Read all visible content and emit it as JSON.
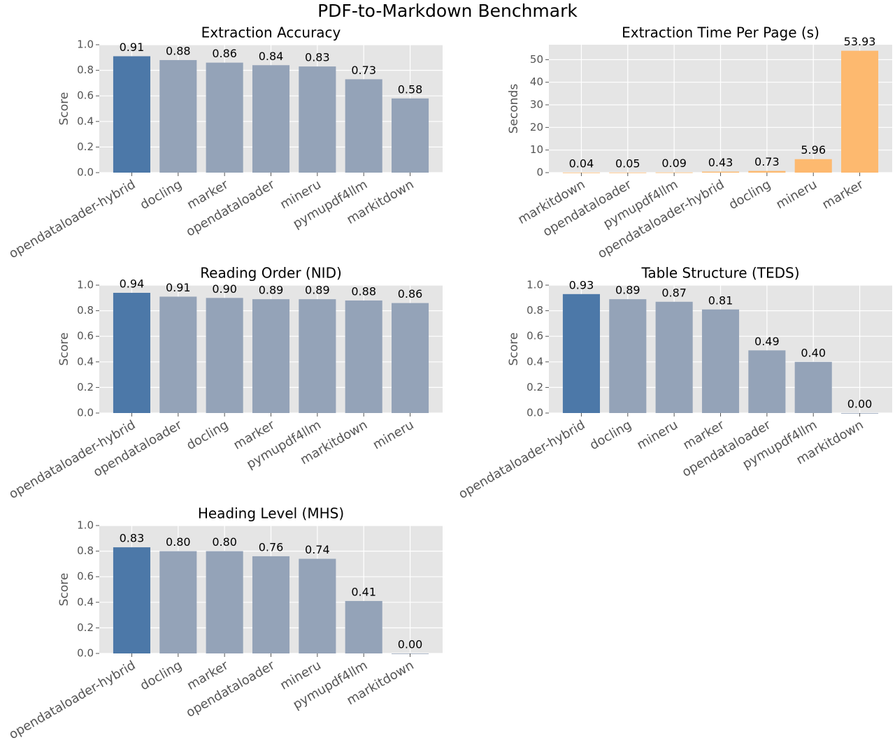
{
  "title": "PDF-to-Markdown Benchmark",
  "chart_data": [
    {
      "type": "bar",
      "title": "Extraction Accuracy",
      "ylabel": "Score",
      "categories": [
        "opendataloader-hybrid",
        "docling",
        "marker",
        "opendataloader",
        "mineru",
        "pymupdf4llm",
        "markitdown"
      ],
      "values": [
        0.91,
        0.88,
        0.86,
        0.84,
        0.83,
        0.73,
        0.58
      ],
      "colors": [
        "#4c78a8",
        "#94a3b8",
        "#94a3b8",
        "#94a3b8",
        "#94a3b8",
        "#94a3b8",
        "#94a3b8"
      ],
      "ylim": [
        0,
        1.0
      ],
      "yticks": [
        {
          "value": 0,
          "label": "0.0"
        },
        {
          "value": 0.2,
          "label": "0.2"
        },
        {
          "value": 0.4,
          "label": "0.4"
        },
        {
          "value": 0.6,
          "label": "0.6"
        },
        {
          "value": 0.8,
          "label": "0.8"
        },
        {
          "value": 1,
          "label": "1.0"
        }
      ],
      "grid": true
    },
    {
      "type": "bar",
      "title": "Extraction Time Per Page (s)",
      "ylabel": "Seconds",
      "categories": [
        "markitdown",
        "opendataloader",
        "pymupdf4llm",
        "opendataloader-hybrid",
        "docling",
        "mineru",
        "marker"
      ],
      "values": [
        0.04,
        0.05,
        0.09,
        0.43,
        0.73,
        5.96,
        53.93
      ],
      "colors": [
        "#fdb96f",
        "#fdb96f",
        "#fdb96f",
        "#fdb96f",
        "#fdb96f",
        "#fdb96f",
        "#fdb96f"
      ],
      "ylim": [
        0,
        56.6
      ],
      "yticks": [
        0,
        10,
        20,
        30,
        40,
        50
      ],
      "grid": true
    },
    {
      "type": "bar",
      "title": "Reading Order (NID)",
      "ylabel": "Score",
      "categories": [
        "opendataloader-hybrid",
        "opendataloader",
        "docling",
        "marker",
        "pymupdf4llm",
        "markitdown",
        "mineru"
      ],
      "values": [
        0.94,
        0.91,
        0.9,
        0.89,
        0.89,
        0.88,
        0.86
      ],
      "value_labels": [
        "0.94",
        "0.91",
        "0.90",
        "0.89",
        "0.89",
        "0.88",
        "0.86"
      ],
      "colors": [
        "#4c78a8",
        "#94a3b8",
        "#94a3b8",
        "#94a3b8",
        "#94a3b8",
        "#94a3b8",
        "#94a3b8"
      ],
      "ylim": [
        0,
        1.0
      ],
      "yticks": [
        {
          "value": 0,
          "label": "0.0"
        },
        {
          "value": 0.2,
          "label": "0.2"
        },
        {
          "value": 0.4,
          "label": "0.4"
        },
        {
          "value": 0.6,
          "label": "0.6"
        },
        {
          "value": 0.8,
          "label": "0.8"
        },
        {
          "value": 1,
          "label": "1.0"
        }
      ],
      "grid": true
    },
    {
      "type": "bar",
      "title": "Table Structure (TEDS)",
      "ylabel": "Score",
      "categories": [
        "opendataloader-hybrid",
        "docling",
        "mineru",
        "marker",
        "opendataloader",
        "pymupdf4llm",
        "markitdown"
      ],
      "values": [
        0.93,
        0.89,
        0.87,
        0.81,
        0.49,
        0.4,
        0
      ],
      "value_labels": [
        "0.93",
        "0.89",
        "0.87",
        "0.81",
        "0.49",
        "0.40",
        "0.00"
      ],
      "colors": [
        "#4c78a8",
        "#94a3b8",
        "#94a3b8",
        "#94a3b8",
        "#94a3b8",
        "#94a3b8",
        "#94a3b8"
      ],
      "ylim": [
        0,
        1.0
      ],
      "yticks": [
        {
          "value": 0,
          "label": "0.0"
        },
        {
          "value": 0.2,
          "label": "0.2"
        },
        {
          "value": 0.4,
          "label": "0.4"
        },
        {
          "value": 0.6,
          "label": "0.6"
        },
        {
          "value": 0.8,
          "label": "0.8"
        },
        {
          "value": 1,
          "label": "1.0"
        }
      ],
      "grid": true
    },
    {
      "type": "bar",
      "title": "Heading Level (MHS)",
      "ylabel": "Score",
      "categories": [
        "opendataloader-hybrid",
        "docling",
        "marker",
        "opendataloader",
        "mineru",
        "pymupdf4llm",
        "markitdown"
      ],
      "values": [
        0.83,
        0.8,
        0.8,
        0.76,
        0.74,
        0.41,
        0
      ],
      "value_labels": [
        "0.83",
        "0.80",
        "0.80",
        "0.76",
        "0.74",
        "0.41",
        "0.00"
      ],
      "colors": [
        "#4c78a8",
        "#94a3b8",
        "#94a3b8",
        "#94a3b8",
        "#94a3b8",
        "#94a3b8",
        "#94a3b8"
      ],
      "ylim": [
        0,
        1.0
      ],
      "yticks": [
        {
          "value": 0,
          "label": "0.0"
        },
        {
          "value": 0.2,
          "label": "0.2"
        },
        {
          "value": 0.4,
          "label": "0.4"
        },
        {
          "value": 0.6,
          "label": "0.6"
        },
        {
          "value": 0.8,
          "label": "0.8"
        },
        {
          "value": 1,
          "label": "1.0"
        }
      ],
      "grid": true
    }
  ]
}
